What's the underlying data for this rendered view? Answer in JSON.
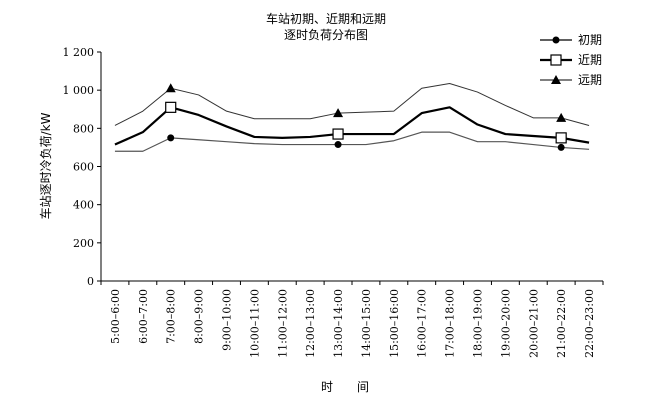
{
  "chart_data": {
    "type": "line",
    "title": "车站初期、近期和远期",
    "subtitle": "逐时负荷分布图",
    "xlabel": "时　　间",
    "ylabel": "车站逐时冷负荷/kW",
    "ylim": [
      0,
      1200
    ],
    "yticks": [
      "0",
      "200",
      "400",
      "600",
      "800",
      "1 000",
      "1 200"
    ],
    "categories": [
      "5:00–6:00",
      "6:00–7:00",
      "7:00–8:00",
      "8:00–9:00",
      "9:00–10:00",
      "10:00–11:00",
      "11:00–12:00",
      "12:00–13:00",
      "13:00–14:00",
      "14:00–15:00",
      "15:00–16:00",
      "16:00–17:00",
      "17:00–18:00",
      "18:00–19:00",
      "19:00–20:00",
      "20:00–21:00",
      "21:00–22:00",
      "22:00–23:00"
    ],
    "legend_position": "top-right",
    "grid": false,
    "series": [
      {
        "name": "初期",
        "marker": "circle",
        "marker_indices": [
          2,
          8,
          16
        ],
        "line_width": 1.2,
        "color": "#555555",
        "values": [
          680,
          680,
          750,
          740,
          730,
          720,
          715,
          715,
          715,
          715,
          735,
          780,
          780,
          730,
          730,
          715,
          700,
          690
        ]
      },
      {
        "name": "近期",
        "marker": "square",
        "marker_indices": [
          2,
          8,
          16
        ],
        "line_width": 2.2,
        "color": "#000000",
        "values": [
          715,
          780,
          910,
          870,
          810,
          755,
          750,
          755,
          770,
          770,
          770,
          880,
          910,
          820,
          770,
          760,
          750,
          725
        ]
      },
      {
        "name": "远期",
        "marker": "triangle",
        "marker_indices": [
          2,
          8,
          16
        ],
        "line_width": 1,
        "color": "#333333",
        "values": [
          815,
          890,
          1010,
          975,
          890,
          850,
          850,
          850,
          880,
          885,
          890,
          1010,
          1035,
          990,
          920,
          855,
          855,
          815
        ]
      }
    ]
  }
}
